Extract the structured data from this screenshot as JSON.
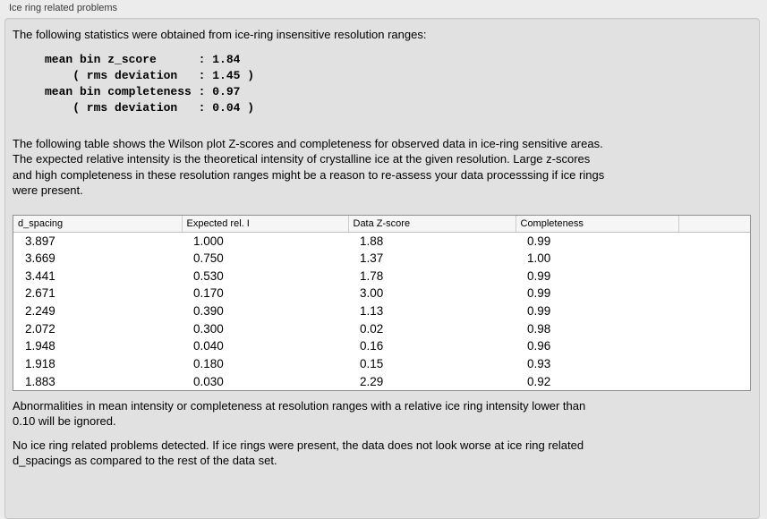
{
  "window": {
    "group_label": "Ice ring related problems"
  },
  "intro": "The following statistics were obtained from ice-ring insensitive resolution ranges:",
  "stats_block": "mean bin z_score      : 1.84\n    ( rms deviation   : 1.45 )\nmean bin completeness : 0.97\n    ( rms deviation   : 0.04 )",
  "stats": {
    "mean_bin_z_score": "1.84",
    "z_score_rms_deviation": "1.45",
    "mean_bin_completeness": "0.97",
    "completeness_rms_deviation": "0.04"
  },
  "table_description": "The following table shows the Wilson plot Z-scores and completeness for observed data in ice-ring sensitive areas.\nThe expected relative intensity is the theoretical intensity of crystalline ice at the given resolution. Large z-scores\nand high completeness in these resolution ranges might be a reason to re-assess your data processsing if ice rings\nwere present.",
  "table": {
    "headers": [
      "d_spacing",
      "Expected rel. I",
      "Data Z-score",
      "Completeness",
      ""
    ],
    "rows": [
      [
        "3.897",
        "1.000",
        "1.88",
        "0.99"
      ],
      [
        "3.669",
        "0.750",
        "1.37",
        "1.00"
      ],
      [
        "3.441",
        "0.530",
        "1.78",
        "0.99"
      ],
      [
        "2.671",
        "0.170",
        "3.00",
        "0.99"
      ],
      [
        "2.249",
        "0.390",
        "1.13",
        "0.99"
      ],
      [
        "2.072",
        "0.300",
        "0.02",
        "0.98"
      ],
      [
        "1.948",
        "0.040",
        "0.16",
        "0.96"
      ],
      [
        "1.918",
        "0.180",
        "0.15",
        "0.93"
      ],
      [
        "1.883",
        "0.030",
        "2.29",
        "0.92"
      ]
    ]
  },
  "notes": {
    "ignore_note": "Abnormalities in mean intensity or completeness at resolution ranges with a relative ice ring intensity lower than\n0.10 will be ignored.",
    "conclusion": "No ice ring related problems detected. If ice rings were present, the data does not look worse at ice ring related\nd_spacings as compared to the rest of the data set."
  },
  "colors": {
    "window_bg": "#ececec",
    "panel_bg": "#e1e1e1",
    "table_bg": "#ffffff",
    "table_header_bg": "#f6f6f6",
    "table_border": "#8f8f8f"
  }
}
